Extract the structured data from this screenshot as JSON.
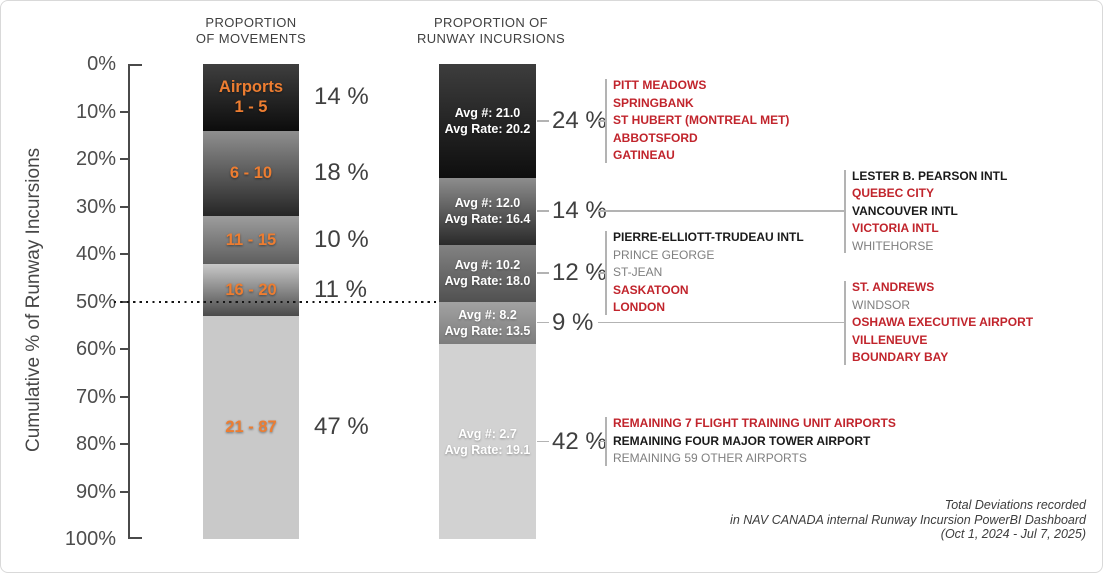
{
  "chart_data": {
    "type": "bar",
    "y_axis": {
      "label": "Cumulative % of Runway Incursions",
      "tick_labels": [
        "0%",
        "10%",
        "20%",
        "30%",
        "40%",
        "50%",
        "60%",
        "70%",
        "80%",
        "90%",
        "100%"
      ],
      "range": [
        0,
        100
      ]
    },
    "reference_line_pct": 50,
    "bars": [
      {
        "name": "movements",
        "title_lines": [
          "PROPORTION",
          "OF MOVEMENTS"
        ],
        "segments": [
          {
            "label_lines": [
              "Airports",
              "1 - 5"
            ],
            "value_pct": 14,
            "pct_label": "14 %"
          },
          {
            "label_lines": [
              "6 - 10"
            ],
            "value_pct": 18,
            "pct_label": "18 %"
          },
          {
            "label_lines": [
              "11 - 15"
            ],
            "value_pct": 10,
            "pct_label": "10 %"
          },
          {
            "label_lines": [
              "16 - 20"
            ],
            "value_pct": 11,
            "pct_label": "11 %"
          },
          {
            "label_lines": [
              "21 - 87"
            ],
            "value_pct": 47,
            "pct_label": "47 %"
          }
        ]
      },
      {
        "name": "runway-incursions",
        "title_lines": [
          "PROPORTION OF",
          "RUNWAY INCURSIONS"
        ],
        "segments": [
          {
            "label_lines": [
              "Avg #: 21.0",
              "Avg Rate: 20.2"
            ],
            "value_pct": 24,
            "pct_label": "24 %"
          },
          {
            "label_lines": [
              "Avg #: 12.0",
              "Avg Rate: 16.4"
            ],
            "value_pct": 14,
            "pct_label": "14 %"
          },
          {
            "label_lines": [
              "Avg #: 10.2",
              "Avg Rate: 18.0"
            ],
            "value_pct": 12,
            "pct_label": "12 %"
          },
          {
            "label_lines": [
              "Avg #: 8.2",
              "Avg Rate: 13.5"
            ],
            "value_pct": 9,
            "pct_label": "9 %"
          },
          {
            "label_lines": [
              "Avg #: 2.7",
              "Avg Rate: 19.1"
            ],
            "value_pct": 42,
            "pct_label": "42 %"
          }
        ]
      }
    ],
    "airport_groups": [
      {
        "segment_pct_label": "24 %",
        "column": 1,
        "items": [
          {
            "text": "PITT MEADOWS",
            "style": "red"
          },
          {
            "text": "SPRINGBANK",
            "style": "red"
          },
          {
            "text": "ST HUBERT (MONTREAL MET)",
            "style": "red"
          },
          {
            "text": "ABBOTSFORD",
            "style": "red"
          },
          {
            "text": "GATINEAU",
            "style": "red"
          }
        ]
      },
      {
        "segment_pct_label": "14 %",
        "column": 2,
        "items": [
          {
            "text": "LESTER B. PEARSON INTL",
            "style": "black"
          },
          {
            "text": "QUEBEC CITY",
            "style": "red"
          },
          {
            "text": "VANCOUVER INTL",
            "style": "black"
          },
          {
            "text": "VICTORIA INTL",
            "style": "red"
          },
          {
            "text": "WHITEHORSE",
            "style": "gray"
          }
        ]
      },
      {
        "segment_pct_label": "12 %",
        "column": 1,
        "items": [
          {
            "text": "PIERRE-ELLIOTT-TRUDEAU INTL",
            "style": "black"
          },
          {
            "text": "PRINCE GEORGE",
            "style": "gray"
          },
          {
            "text": "ST-JEAN",
            "style": "gray"
          },
          {
            "text": "SASKATOON",
            "style": "red"
          },
          {
            "text": "LONDON",
            "style": "red"
          }
        ]
      },
      {
        "segment_pct_label": "9 %",
        "column": 2,
        "items": [
          {
            "text": "ST. ANDREWS",
            "style": "red"
          },
          {
            "text": "WINDSOR",
            "style": "gray"
          },
          {
            "text": "OSHAWA EXECUTIVE AIRPORT",
            "style": "red"
          },
          {
            "text": "VILLENEUVE",
            "style": "red"
          },
          {
            "text": "BOUNDARY BAY",
            "style": "red"
          }
        ]
      },
      {
        "segment_pct_label": "42 %",
        "column": 1,
        "items": [
          {
            "text": "REMAINING 7 FLIGHT TRAINING UNIT AIRPORTS",
            "style": "red"
          },
          {
            "text": "REMAINING FOUR MAJOR TOWER AIRPORT",
            "style": "black"
          },
          {
            "text": "REMAINING 59 OTHER AIRPORTS",
            "style": "gray"
          }
        ]
      }
    ],
    "footer_lines": [
      "Total Deviations recorded",
      "in NAV CANADA internal Runway Incursion PowerBI Dashboard",
      "(Oct 1, 2024 - Jul 7, 2025)"
    ],
    "colors": {
      "red": "#C1242C",
      "black": "#1a1a1a",
      "gray": "#7f7f7f",
      "orange": "#ED7D31",
      "percent_label": "#404040",
      "axis": "#4a4a4a",
      "connector": "#b3b3b3",
      "gradients_movements": [
        [
          "#3f3f3f",
          "#0c0c0c"
        ],
        [
          "#8f8f8f",
          "#262626"
        ],
        [
          "#9d9d9d",
          "#5e5e5e"
        ],
        [
          "#c8c8c8",
          "#4a4a4a"
        ],
        [
          "#c9c9c9",
          "#c9c9c9"
        ]
      ],
      "gradients_incursions": [
        [
          "#3d3d3d",
          "#0e0e0e"
        ],
        [
          "#8d8d8d",
          "#2a2a2a"
        ],
        [
          "#828282",
          "#515151"
        ],
        [
          "#a2a2a2",
          "#7d7d7d"
        ],
        [
          "#d2d2d2",
          "#d2d2d2"
        ]
      ]
    }
  }
}
